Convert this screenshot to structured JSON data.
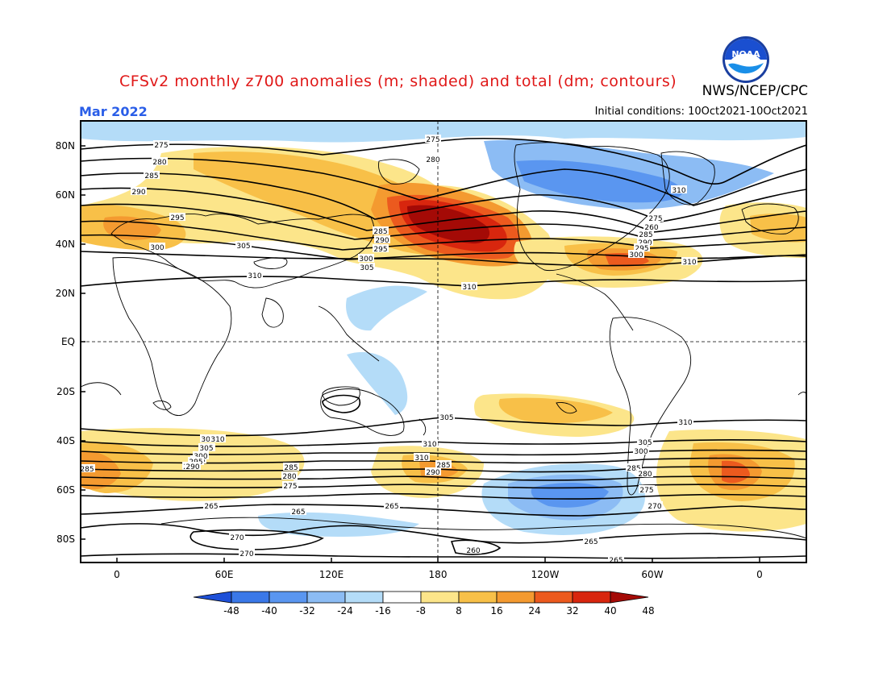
{
  "title": "CFSv2 monthly z700 anomalies (m; shaded) and total (dm; contours)",
  "agency": "NWS/NCEP/CPC",
  "month": "Mar 2022",
  "initial_conditions": "Initial conditions: 10Oct2021-10Oct2021",
  "logo_text": "NOAA",
  "lat_labels": [
    "80N",
    "60N",
    "40N",
    "20N",
    "EQ",
    "20S",
    "40S",
    "60S",
    "80S"
  ],
  "lon_labels": [
    "0",
    "60E",
    "120E",
    "180",
    "120W",
    "60W",
    "0"
  ],
  "colorbar": {
    "labels": [
      "-48",
      "-40",
      "-32",
      "-24",
      "-16",
      "-8",
      "8",
      "16",
      "24",
      "32",
      "40",
      "48"
    ],
    "colors": [
      "#1e50d8",
      "#3a78e8",
      "#5a96f0",
      "#8cbcf4",
      "#b4dcf8",
      "#ffffff",
      "#fce58a",
      "#f8c048",
      "#f49a30",
      "#ec5a1e",
      "#d8260e",
      "#a40a06"
    ]
  },
  "contour_labels": [
    {
      "text": "275"
    },
    {
      "text": "280"
    },
    {
      "text": "285"
    },
    {
      "text": "290"
    },
    {
      "text": "295"
    },
    {
      "text": "300"
    },
    {
      "text": "305"
    },
    {
      "text": "310"
    },
    {
      "text": "310"
    },
    {
      "text": "275"
    },
    {
      "text": "280"
    },
    {
      "text": "285"
    },
    {
      "text": "290"
    },
    {
      "text": "295"
    },
    {
      "text": "300"
    },
    {
      "text": "305"
    },
    {
      "text": "310"
    },
    {
      "text": "310"
    },
    {
      "text": "275"
    },
    {
      "text": "260"
    },
    {
      "text": "285"
    },
    {
      "text": "290"
    },
    {
      "text": "295"
    },
    {
      "text": "300"
    },
    {
      "text": "305"
    },
    {
      "text": "310"
    },
    {
      "text": "310"
    },
    {
      "text": "305"
    },
    {
      "text": "300"
    },
    {
      "text": "295"
    },
    {
      "text": "290"
    },
    {
      "text": "285"
    },
    {
      "text": "310"
    },
    {
      "text": "305"
    },
    {
      "text": "300"
    },
    {
      "text": "285"
    },
    {
      "text": "280"
    },
    {
      "text": "270"
    },
    {
      "text": "275"
    },
    {
      "text": "265"
    },
    {
      "text": "265"
    },
    {
      "text": "265"
    },
    {
      "text": "270"
    },
    {
      "text": "270"
    },
    {
      "text": "260"
    },
    {
      "text": "265"
    },
    {
      "text": "310"
    },
    {
      "text": "305"
    },
    {
      "text": "300"
    },
    {
      "text": "295"
    },
    {
      "text": "290"
    },
    {
      "text": "285"
    },
    {
      "text": "280"
    },
    {
      "text": "275"
    },
    {
      "text": "270"
    },
    {
      "text": "265"
    },
    {
      "text": "285"
    },
    {
      "text": "290"
    }
  ]
}
